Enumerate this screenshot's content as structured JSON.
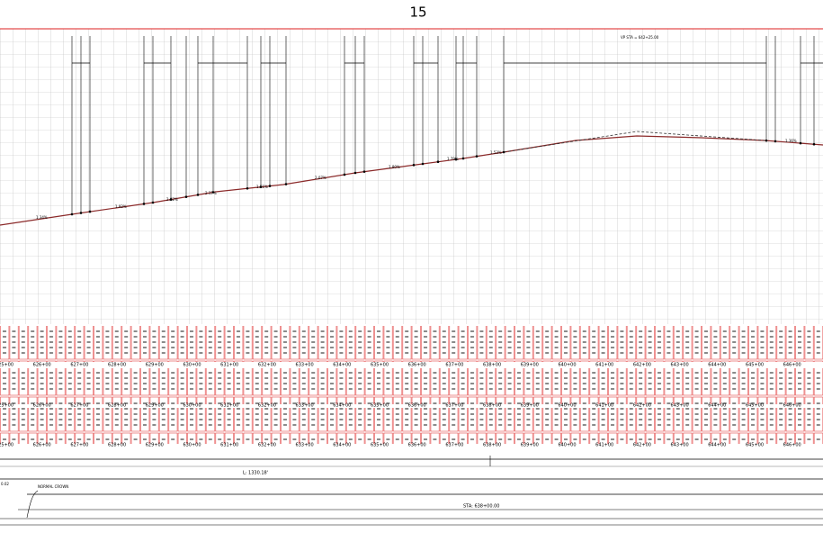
{
  "header": {
    "title": "15"
  },
  "profile": {
    "grades": [
      "1.34%",
      "1.92%",
      "2.02%",
      "2.17%",
      "1.51%",
      "2.07%",
      "1.80%",
      "1.79%",
      "1.53%",
      "1.36%"
    ],
    "curve_label": "VP STA = 642+25.00"
  },
  "stations": [
    "625+00",
    "626+00",
    "627+00",
    "628+00",
    "629+00",
    "630+00",
    "631+00",
    "632+00",
    "633+00",
    "634+00",
    "635+00",
    "636+00",
    "637+00",
    "638+00",
    "639+00",
    "640+00",
    "641+00",
    "642+00",
    "643+00",
    "644+00",
    "645+00",
    "646+00"
  ],
  "plan": {
    "length": "L: 1330.18'",
    "station": "STA: 638+00.00",
    "crown": "NORMAL CROWN",
    "slope": "0.02"
  }
}
